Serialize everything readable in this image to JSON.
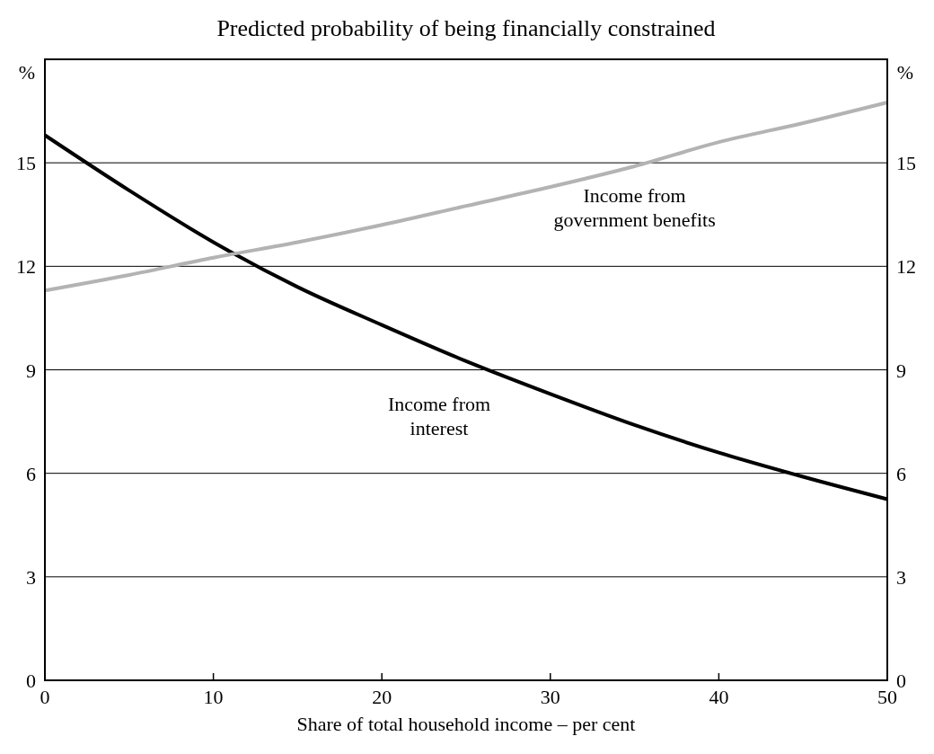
{
  "chart_data": {
    "type": "line",
    "title": "Predicted probability of being financially constrained",
    "xlabel": "Share of total household income – per cent",
    "ylabel": "%",
    "y2label": "%",
    "x": [
      0,
      5,
      10,
      15,
      20,
      25,
      30,
      35,
      40,
      45,
      50
    ],
    "series": [
      {
        "name": "Income from interest",
        "color": "#000000",
        "values": [
          15.8,
          14.2,
          12.7,
          11.4,
          10.3,
          9.25,
          8.3,
          7.4,
          6.6,
          5.9,
          5.25
        ]
      },
      {
        "name": "Income from government benefits",
        "color": "#b3b3b3",
        "values": [
          11.3,
          11.75,
          12.25,
          12.7,
          13.2,
          13.75,
          14.3,
          14.9,
          15.6,
          16.15,
          16.75
        ]
      }
    ],
    "xlim": [
      0,
      50
    ],
    "xticks": [
      0,
      10,
      20,
      30,
      40,
      50
    ],
    "ylim": [
      0,
      18
    ],
    "yticks": [
      0,
      3,
      6,
      9,
      12,
      15
    ],
    "y2lim": [
      0,
      18
    ],
    "y2ticks": [
      0,
      3,
      6,
      9,
      12,
      15
    ],
    "grid": "y",
    "line_style": "solid",
    "marker": "none"
  }
}
